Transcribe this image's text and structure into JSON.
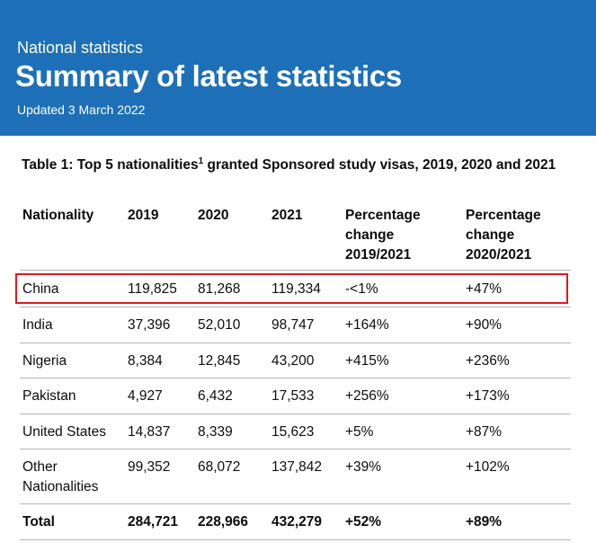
{
  "header": {
    "eyebrow": "National statistics",
    "title": "Summary of latest statistics",
    "updated": "Updated 3 March 2022"
  },
  "table": {
    "caption_start": "Table 1: Top 5 nationalities",
    "caption_footnote": "1",
    "caption_end": " granted Sponsored study visas, 2019, 2020 and 2021",
    "headers": {
      "nationality": "Nationality",
      "y2019": "2019",
      "y2020": "2020",
      "y2021": "2021",
      "pct1_l1": "Percentage",
      "pct1_l2": "change",
      "pct1_l3": "2019/2021",
      "pct2_l1": "Percentage",
      "pct2_l2": "change",
      "pct2_l3": "2020/2021"
    },
    "rows": [
      {
        "nationality": "China",
        "y2019": "119,825",
        "y2020": "81,268",
        "y2021": "119,334",
        "pct1": "-<1%",
        "pct2": "+47%"
      },
      {
        "nationality": "India",
        "y2019": "37,396",
        "y2020": "52,010",
        "y2021": "98,747",
        "pct1": "+164%",
        "pct2": "+90%"
      },
      {
        "nationality": "Nigeria",
        "y2019": "8,384",
        "y2020": "12,845",
        "y2021": "43,200",
        "pct1": "+415%",
        "pct2": "+236%"
      },
      {
        "nationality": "Pakistan",
        "y2019": "4,927",
        "y2020": "6,432",
        "y2021": "17,533",
        "pct1": "+256%",
        "pct2": "+173%"
      },
      {
        "nationality": "United States",
        "y2019": "14,837",
        "y2020": "8,339",
        "y2021": "15,623",
        "pct1": "+5%",
        "pct2": "+87%"
      },
      {
        "nationality_l1": "Other",
        "nationality_l2": "Nationalities",
        "y2019": "99,352",
        "y2020": "68,072",
        "y2021": "137,842",
        "pct1": "+39%",
        "pct2": "+102%"
      }
    ],
    "total": {
      "nationality": "Total",
      "y2019": "284,721",
      "y2020": "228,966",
      "y2021": "432,279",
      "pct1": "+52%",
      "pct2": "+89%"
    }
  },
  "colors": {
    "banner": "#1d70b8",
    "highlight_border": "#e5161d",
    "rule": "#b1b4b6"
  }
}
